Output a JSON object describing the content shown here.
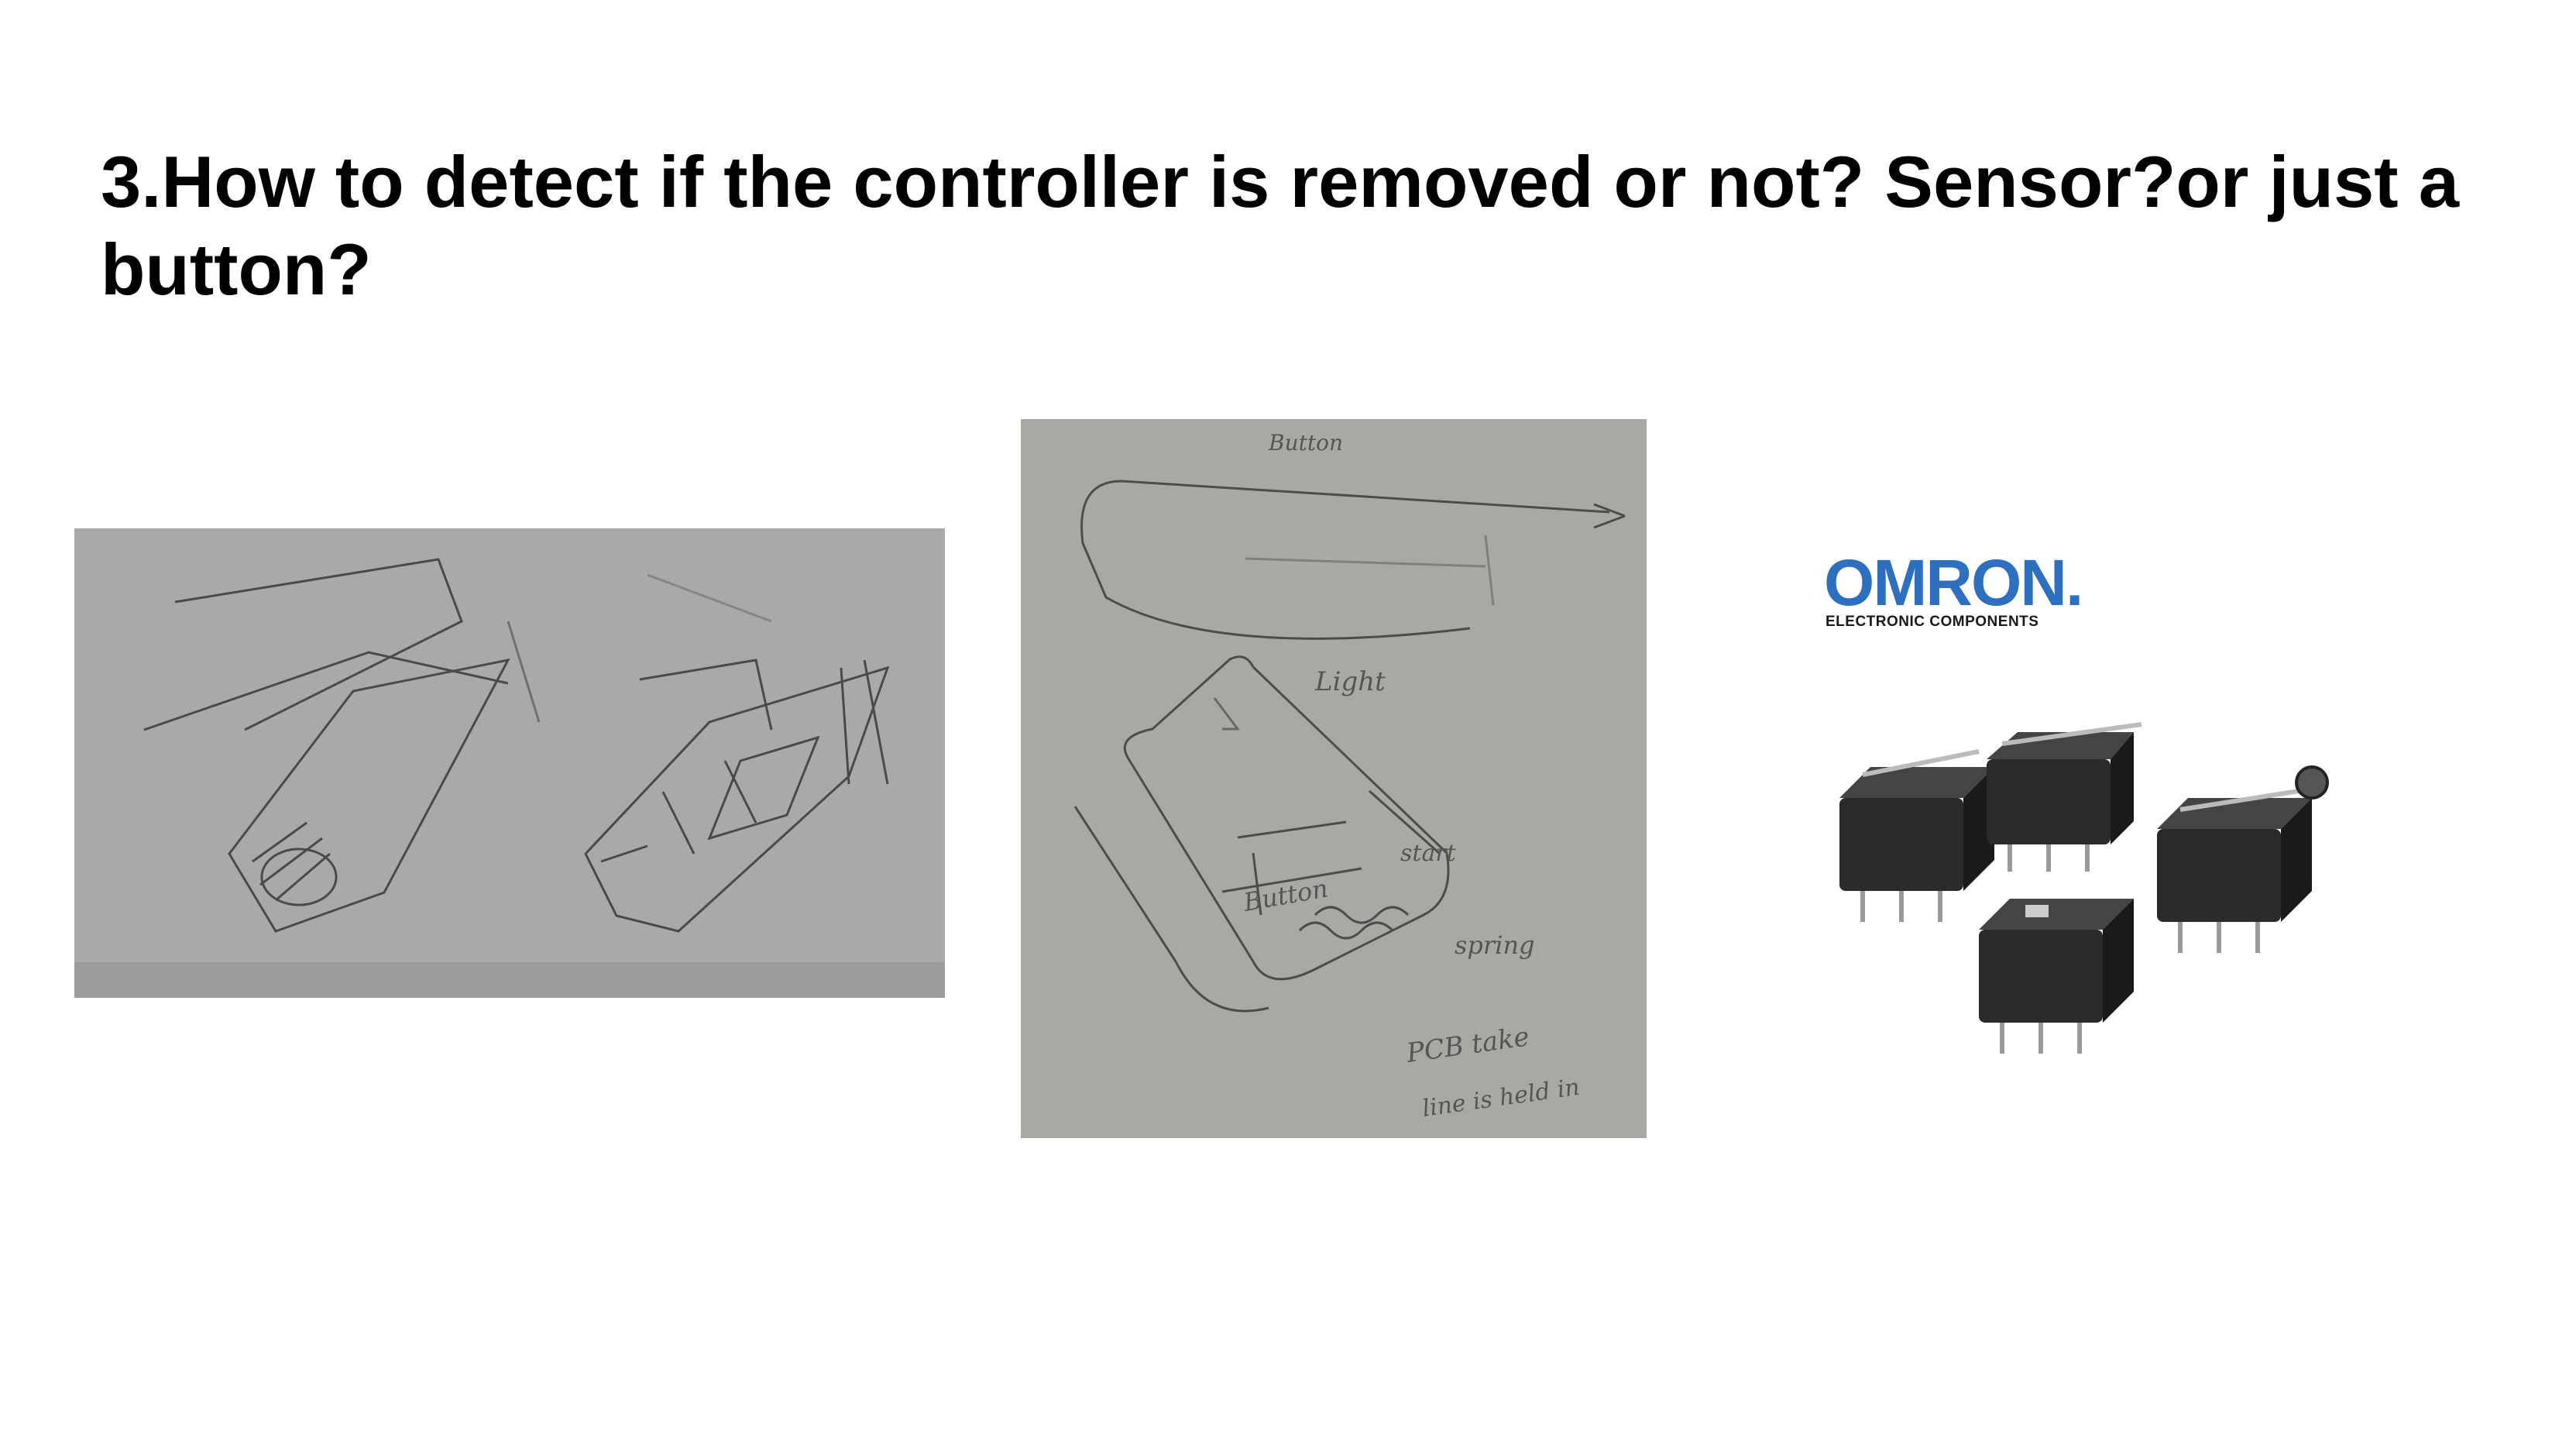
{
  "slide": {
    "title": "3.How to detect if the controller is removed or not? Sensor?or just a button?"
  },
  "images": {
    "sketch_left": {
      "kind": "pencil sketch photo"
    },
    "sketch_middle": {
      "kind": "pencil sketch photo",
      "annotations": [
        "Button",
        "Light",
        "Button",
        "start",
        "spring",
        "PCB take",
        "line is held in"
      ]
    },
    "omron_product": {
      "logo_text": "OMRON.",
      "logo_subtext": "ELECTRONIC COMPONENTS",
      "brand_color": "#2f6fc0"
    }
  }
}
